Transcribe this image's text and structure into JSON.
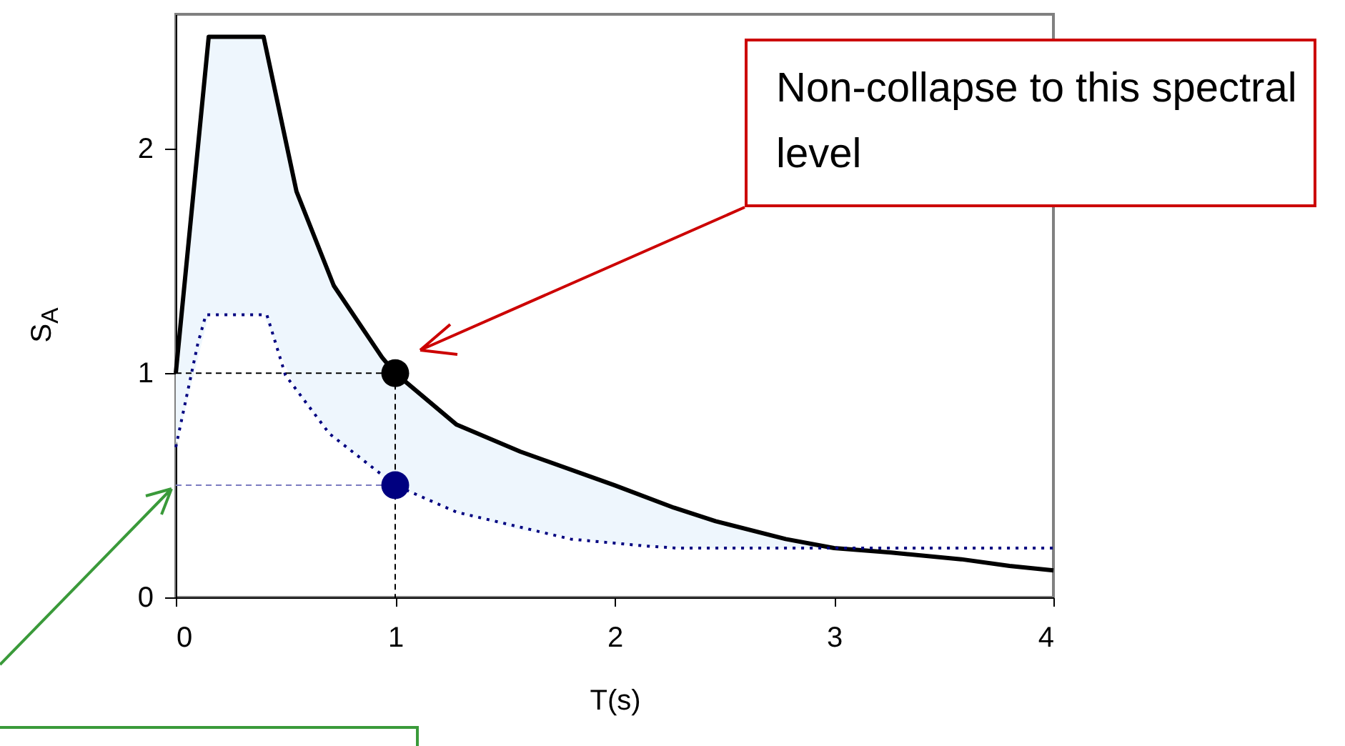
{
  "chart_data": {
    "type": "line",
    "xlabel": "T(s)",
    "ylabel": "S$_{A}$",
    "xlim": [
      0,
      4
    ],
    "ylim": [
      0,
      2.6
    ],
    "xticks": [
      0,
      1,
      2,
      3,
      4
    ],
    "yticks": [
      0,
      1,
      2
    ],
    "annotations": [
      "Non-collapse to this spectral level"
    ],
    "series": [
      {
        "color": "#000000",
        "line_style": "solid",
        "x": [
          0,
          0.15,
          0.4,
          0.55,
          0.72,
          0.94,
          1,
          1.28,
          1.57,
          2,
          2.27,
          2.46,
          2.78,
          3,
          3.26,
          3.58,
          3.8,
          4
        ],
        "values": [
          1,
          2.5,
          2.5,
          1.81,
          1.39,
          1.07,
          1,
          0.77,
          0.65,
          0.5,
          0.4,
          0.34,
          0.26,
          0.22,
          0.2,
          0.17,
          0.14,
          0.12
        ],
        "lower": [
          0.67,
          1.26,
          1.26,
          0.92,
          0.71,
          0.54,
          0.5,
          0.38,
          0.3,
          0.24,
          0.22,
          0.22,
          0.22,
          0.22,
          null,
          null,
          null,
          null
        ],
        "upper": [
          1,
          2.5,
          2.5,
          1.81,
          1.39,
          1.07,
          1,
          0.77,
          0.65,
          0.5,
          0.4,
          0.34,
          0.26,
          0.22,
          null,
          null,
          null,
          null
        ]
      },
      {
        "color": "#000080",
        "line_style": "dotted",
        "x": [
          0,
          0.1,
          0.137,
          0.415,
          0.5,
          0.7,
          1,
          1.28,
          1.8,
          2.13,
          2.28,
          4
        ],
        "values": [
          0.67,
          1.13,
          1.26,
          1.26,
          0.99,
          0.73,
          0.5,
          0.38,
          0.26,
          0.23,
          0.22,
          0.22
        ]
      },
      {
        "color": "#000000",
        "line_style": "dashed",
        "x": [
          0,
          1,
          1
        ],
        "values": [
          1,
          1,
          0
        ]
      },
      {
        "color": "#7b7bc0",
        "line_style": "dashed",
        "x": [
          0,
          1
        ],
        "values": [
          0.5,
          0.5
        ]
      },
      {
        "type": "scatter",
        "marker": "circle",
        "x": [
          1,
          1
        ],
        "values": [
          1,
          0.5
        ],
        "colors": [
          "#000000",
          "#000080"
        ]
      }
    ]
  }
}
